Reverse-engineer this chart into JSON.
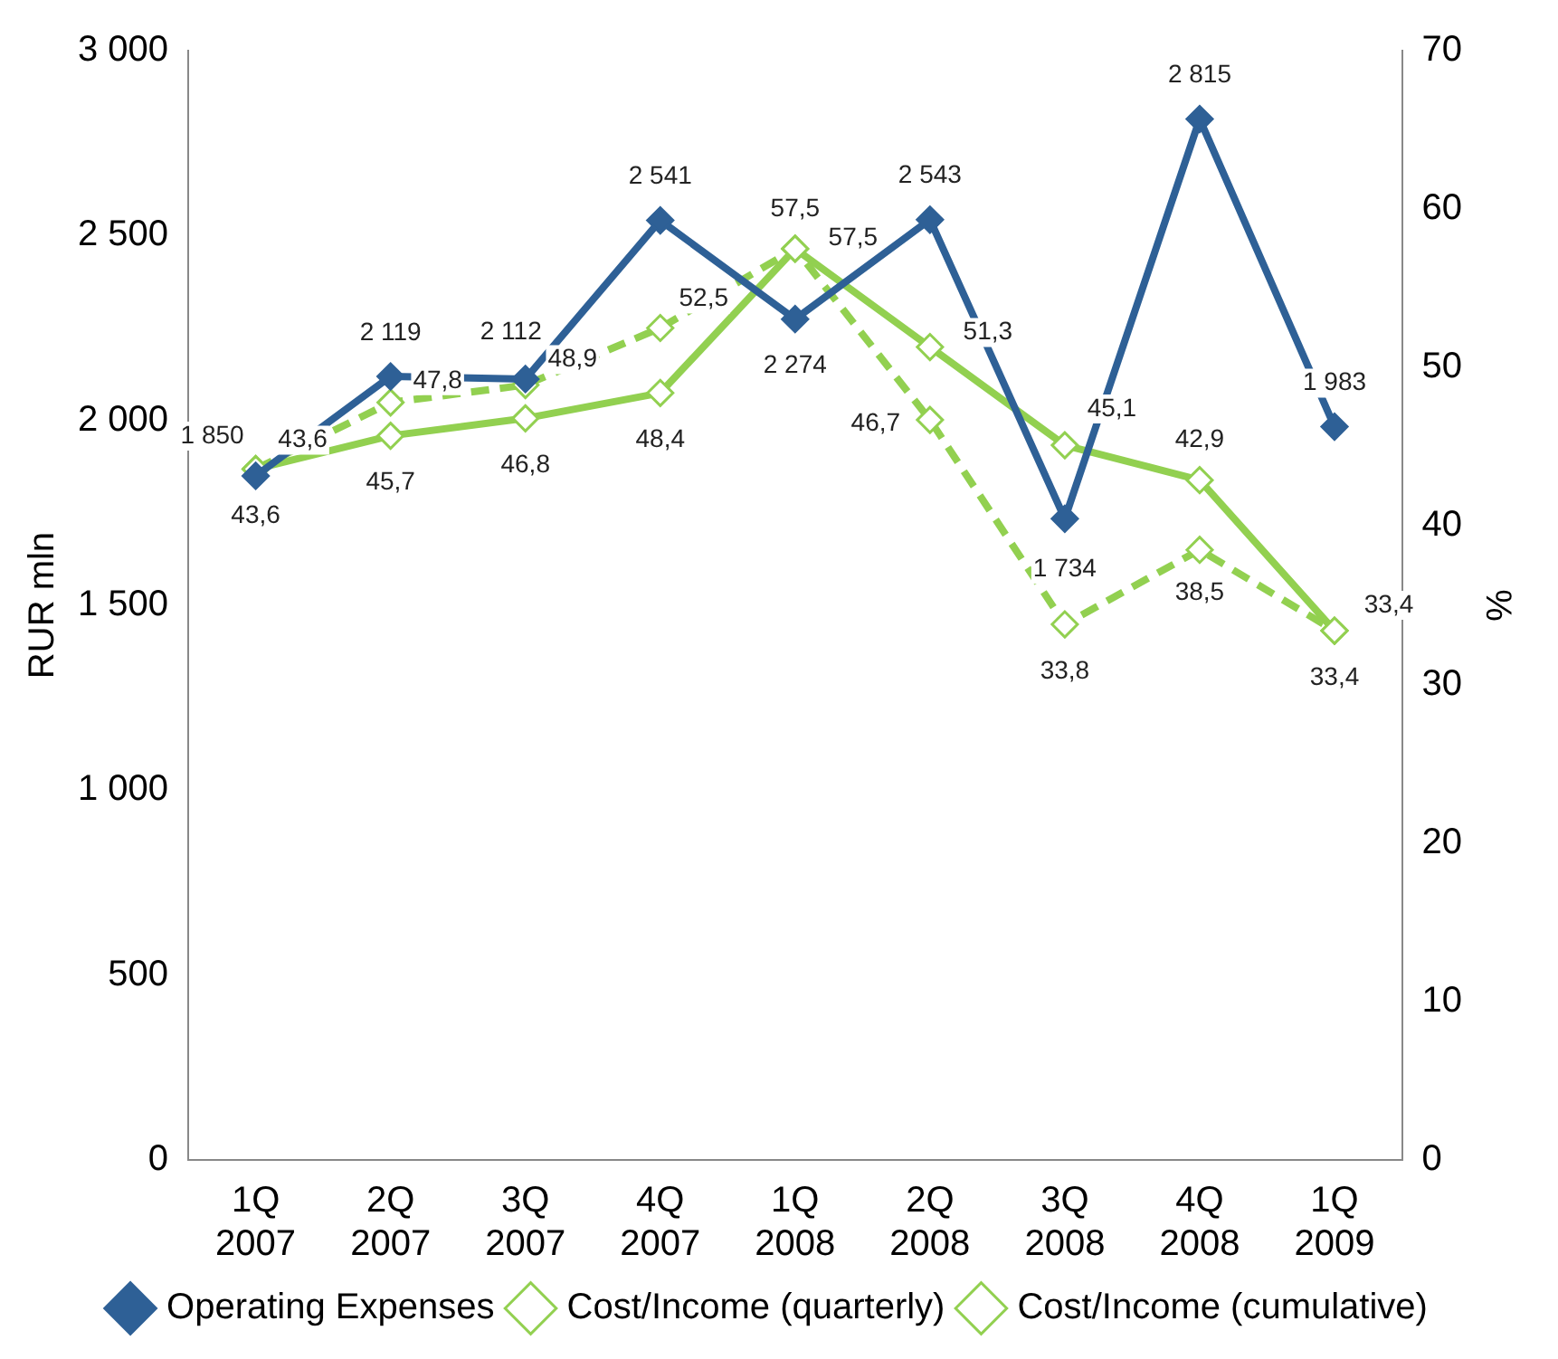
{
  "chart_data": {
    "type": "line",
    "ylabel": "RUR mln",
    "y2label": "%",
    "categories": [
      "1Q 2007",
      "2Q 2007",
      "3Q 2007",
      "4Q 2007",
      "1Q 2008",
      "2Q 2008",
      "3Q 2008",
      "4Q 2008",
      "1Q 2009"
    ],
    "ylim": [
      0,
      3000
    ],
    "yticks": [
      0,
      500,
      {
        "value": 1000,
        "label": "1 000"
      },
      {
        "value": 1500,
        "label": "1 500"
      },
      {
        "value": 2000,
        "label": "2 000"
      },
      {
        "value": 2500,
        "label": "2 500"
      },
      {
        "value": 3000,
        "label": "3 000"
      }
    ],
    "y2lim": [
      0,
      70
    ],
    "y2ticks": [
      0,
      10,
      20,
      30,
      40,
      50,
      60,
      70
    ],
    "grid": false,
    "legend": "bottom",
    "series": [
      {
        "name": "Operating Expenses",
        "color": "#2e6096",
        "marker": "diamond",
        "line_style": "solid",
        "values": [
          1850,
          2119,
          2112,
          2541,
          2274,
          2543,
          1734,
          2815,
          1983
        ],
        "value_labels": [
          "1 850",
          "2 119",
          "2 112",
          "2 541",
          "2 274",
          "2 543",
          "1 734",
          "2 815",
          "1 983"
        ]
      },
      {
        "name": "Cost/Income (quarterly)",
        "color": "#92d050",
        "marker": "diamond",
        "line_style": "dashed",
        "axis": "y2",
        "values": [
          43.6,
          47.8,
          48.9,
          52.5,
          57.5,
          46.7,
          33.8,
          38.5,
          33.4
        ],
        "value_labels": [
          "43,6",
          "47,8",
          "48,9",
          "52,5",
          "57,5",
          "46,7",
          "33,8",
          "38,5",
          "33,4"
        ]
      },
      {
        "name": "Cost/Income (cumulative)",
        "color": "#92d050",
        "marker": "diamond",
        "line_style": "solid",
        "axis": "y2",
        "values": [
          43.6,
          45.7,
          46.8,
          48.4,
          57.5,
          51.3,
          45.1,
          42.9,
          33.4
        ],
        "value_labels": [
          "43,6",
          "45,7",
          "46,8",
          "48,4",
          "57,5",
          "51,3",
          "45,1",
          "42,9",
          "33,4"
        ]
      }
    ]
  }
}
